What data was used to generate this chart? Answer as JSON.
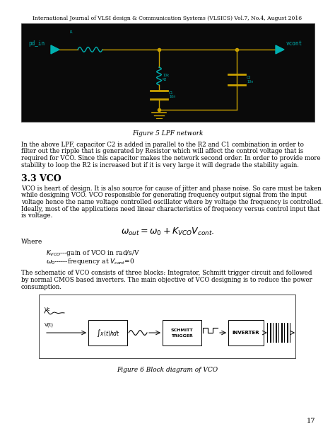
{
  "header": "International Journal of VLSI design & Communication Systems (VLSICS) Vol.7, No.4, August 2016",
  "figure5_caption": "Figure 5 LPF network",
  "para1_lines": [
    "In the above LPF, capacitor C2 is added in parallel to the R2 and C1 combination in order to",
    "filter out the ripple that is generated by Resistor which will affect the control voltage that is",
    "required for VCO. Since this capacitor makes the network second order. In order to provide more",
    "stability to loop the R2 is increased but if it is very large it will degrade the stability again."
  ],
  "section_title": "3.3 VCO",
  "para2_lines": [
    "VCO is heart of design. It is also source for cause of jitter and phase noise. So care must be taken",
    "while designing VCO. VCO responsible for generating frequency output signal from the input",
    "voltage hence the name voltage controlled oscillator where by voltage the frequency is controlled.",
    "Ideally, most of the applications need linear characteristics of frequency versus control input that",
    "is voltage."
  ],
  "where_label": "Where",
  "kvco_line": "K_{VCO}---gain of VCO in rad/s/V",
  "omega_line": "\\omega_0------frequency at V_{cont}=0",
  "para3_lines": [
    "The schematic of VCO consists of three blocks: Integrator, Schmitt trigger circuit and followed",
    "by normal CMOS based inverters. The main objective of VCO designing is to reduce the power",
    "consumption."
  ],
  "figure6_caption": "Figure 6 Block diagram of VCO",
  "page_number": "17",
  "bg_color": "#ffffff",
  "text_color": "#000000",
  "circuit_bg": "#0a0a0a",
  "circuit_fg": "#c8a000",
  "circuit_cyan": "#00b0b0"
}
